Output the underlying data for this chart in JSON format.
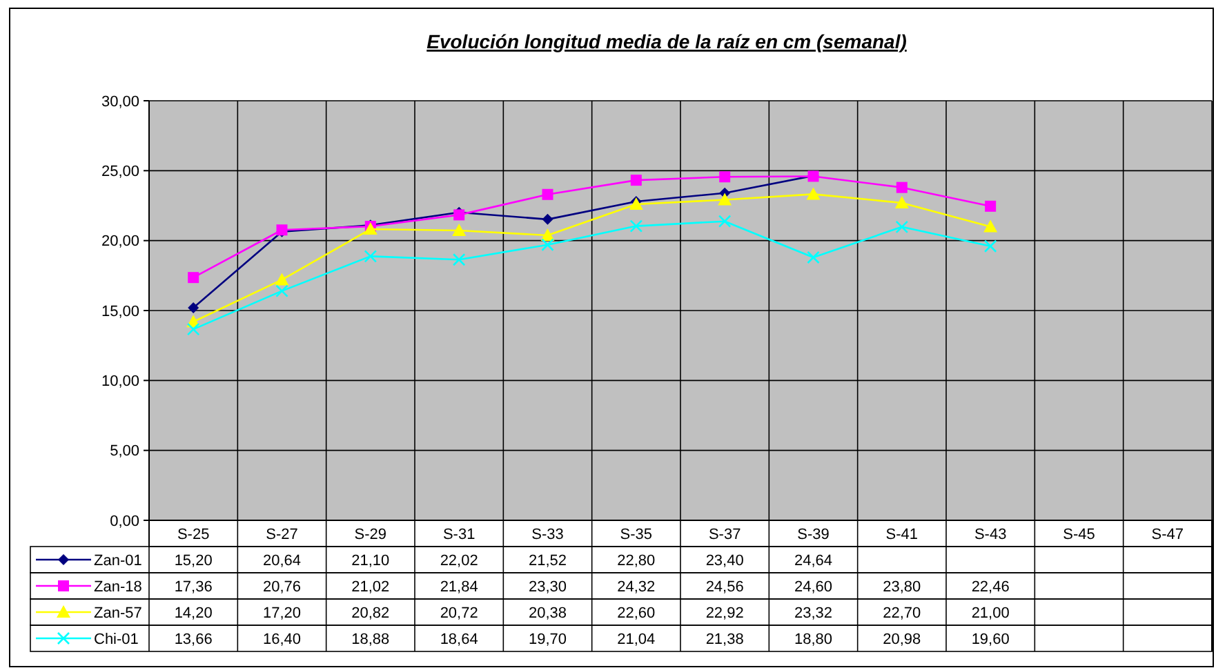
{
  "chart_data": {
    "type": "line",
    "title": "Evolución longitud media de la raíz en cm (semanal)",
    "categories": [
      "S-25",
      "S-27",
      "S-29",
      "S-31",
      "S-33",
      "S-35",
      "S-37",
      "S-39",
      "S-41",
      "S-43",
      "S-45",
      "S-47"
    ],
    "series": [
      {
        "name": "Zan-01",
        "color": "#000080",
        "marker": "diamond",
        "values": [
          15.2,
          20.64,
          21.1,
          22.02,
          21.52,
          22.8,
          23.4,
          24.64,
          null,
          null,
          null,
          null
        ],
        "value_labels": [
          "15,20",
          "20,64",
          "21,10",
          "22,02",
          "21,52",
          "22,80",
          "23,40",
          "24,64",
          null,
          null,
          null,
          null
        ]
      },
      {
        "name": "Zan-18",
        "color": "#ff00ff",
        "marker": "square",
        "values": [
          17.36,
          20.76,
          21.02,
          21.84,
          23.3,
          24.32,
          24.56,
          24.6,
          23.8,
          22.46,
          null,
          null
        ],
        "value_labels": [
          "17,36",
          "20,76",
          "21,02",
          "21,84",
          "23,30",
          "24,32",
          "24,56",
          "24,60",
          "23,80",
          "22,46",
          null,
          null
        ]
      },
      {
        "name": "Zan-57",
        "color": "#ffff00",
        "marker": "triangle",
        "values": [
          14.2,
          17.2,
          20.82,
          20.72,
          20.38,
          22.6,
          22.92,
          23.32,
          22.7,
          21.0,
          null,
          null
        ],
        "value_labels": [
          "14,20",
          "17,20",
          "20,82",
          "20,72",
          "20,38",
          "22,60",
          "22,92",
          "23,32",
          "22,70",
          "21,00",
          null,
          null
        ]
      },
      {
        "name": "Chi-01",
        "color": "#00ffff",
        "marker": "cross",
        "values": [
          13.66,
          16.4,
          18.88,
          18.64,
          19.7,
          21.04,
          21.38,
          18.8,
          20.98,
          19.6,
          null,
          null
        ],
        "value_labels": [
          "13,66",
          "16,40",
          "18,88",
          "18,64",
          "19,70",
          "21,04",
          "21,38",
          "18,80",
          "20,98",
          "19,60",
          null,
          null
        ]
      }
    ],
    "ylim": [
      0,
      30
    ],
    "yticks": [
      {
        "value": 0,
        "label": "0,00"
      },
      {
        "value": 5,
        "label": "5,00"
      },
      {
        "value": 10,
        "label": "10,00"
      },
      {
        "value": 15,
        "label": "15,00"
      },
      {
        "value": 20,
        "label": "20,00"
      },
      {
        "value": 25,
        "label": "25,00"
      },
      {
        "value": 30,
        "label": "30,00"
      }
    ],
    "grid": true,
    "legend": "bottom"
  }
}
